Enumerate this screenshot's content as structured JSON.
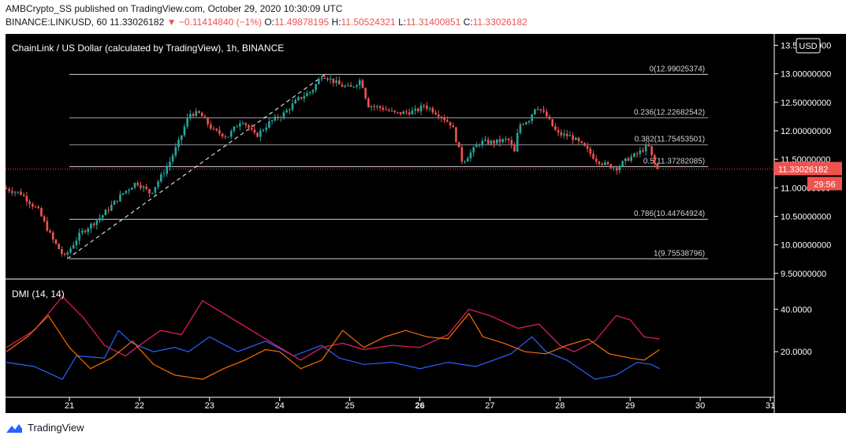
{
  "header": {
    "publisher_line": "AMBCrypto_SS published on TradingView.com, October 29, 2020 10:30:09 UTC",
    "symbol": "BINANCE:LINKUSD, 60",
    "last": "11.33026182",
    "change": "▼ −0.11414840 (−1%)",
    "o_label": "O:",
    "o_value": "11.49878195",
    "h_label": "H:",
    "h_value": "11.50524321",
    "l_label": "L:",
    "l_value": "11.31400851",
    "c_label": "C:",
    "c_value": "11.33026182"
  },
  "chart": {
    "title": "ChainLink / US Dollar (calculated by TradingView), 1h, BINANCE",
    "currency_button": "USD",
    "last_price_label": "11.33026182",
    "countdown_label": "29:56",
    "indicator_label": "DMI (14, 14)"
  },
  "footer": {
    "brand": "TradingView"
  },
  "colors": {
    "background": "#000000",
    "candle_up": "#26a69a",
    "candle_down": "#ef5350",
    "price_line": "#ef5350",
    "di_plus": "#2962ff",
    "di_minus": "#e91e63",
    "adx": "#ff6d00"
  },
  "chart_data": [
    {
      "type": "candlestick",
      "title": "ChainLink / US Dollar (calculated by TradingView), 1h, BINANCE",
      "x_ticks": [
        "21",
        "22",
        "23",
        "24",
        "25",
        "26",
        "27",
        "28",
        "29",
        "30",
        "31"
      ],
      "y_ticks": [
        "13.50000000",
        "13.00000000",
        "12.50000000",
        "12.00000000",
        "11.50000000",
        "11.00000000",
        "10.50000000",
        "10.00000000",
        "9.50000000"
      ],
      "ylim": [
        9.4,
        13.7
      ],
      "price_path": [
        [
          20.1,
          11.0
        ],
        [
          20.35,
          10.9
        ],
        [
          20.6,
          10.6
        ],
        [
          20.8,
          10.1
        ],
        [
          20.97,
          9.78
        ],
        [
          21.2,
          10.2
        ],
        [
          21.5,
          10.5
        ],
        [
          21.8,
          10.9
        ],
        [
          22.0,
          11.1
        ],
        [
          22.2,
          10.9
        ],
        [
          22.45,
          11.4
        ],
        [
          22.62,
          11.85
        ],
        [
          22.75,
          12.3
        ],
        [
          22.9,
          12.3
        ],
        [
          23.1,
          12.0
        ],
        [
          23.3,
          11.9
        ],
        [
          23.5,
          12.2
        ],
        [
          23.7,
          11.9
        ],
        [
          23.9,
          12.15
        ],
        [
          24.1,
          12.3
        ],
        [
          24.3,
          12.55
        ],
        [
          24.5,
          12.7
        ],
        [
          24.65,
          12.99
        ],
        [
          24.9,
          12.8
        ],
        [
          25.05,
          12.75
        ],
        [
          25.2,
          12.9
        ],
        [
          25.3,
          12.45
        ],
        [
          25.5,
          12.4
        ],
        [
          25.7,
          12.3
        ],
        [
          26.0,
          12.35
        ],
        [
          26.1,
          12.45
        ],
        [
          26.3,
          12.3
        ],
        [
          26.5,
          12.1
        ],
        [
          26.65,
          11.45
        ],
        [
          26.9,
          11.8
        ],
        [
          27.1,
          11.8
        ],
        [
          27.3,
          11.85
        ],
        [
          27.4,
          11.6
        ],
        [
          27.45,
          12.1
        ],
        [
          27.6,
          12.2
        ],
        [
          27.7,
          12.45
        ],
        [
          27.85,
          12.25
        ],
        [
          28.0,
          11.95
        ],
        [
          28.2,
          11.9
        ],
        [
          28.4,
          11.7
        ],
        [
          28.55,
          11.5
        ],
        [
          28.7,
          11.4
        ],
        [
          28.85,
          11.35
        ],
        [
          29.0,
          11.5
        ],
        [
          29.15,
          11.6
        ],
        [
          29.3,
          11.75
        ],
        [
          29.35,
          11.55
        ],
        [
          29.42,
          11.33
        ]
      ],
      "last": 11.33026182
    },
    {
      "type": "line",
      "title": "DMI (14, 14)",
      "y_ticks": [
        "40.0000",
        "20.0000"
      ],
      "ylim": [
        0,
        52
      ],
      "series": [
        {
          "key": "di_plus",
          "values": [
            [
              20.1,
              15
            ],
            [
              20.5,
              13
            ],
            [
              20.9,
              7
            ],
            [
              21.1,
              18
            ],
            [
              21.5,
              17
            ],
            [
              21.7,
              30
            ],
            [
              21.9,
              24
            ],
            [
              22.2,
              20
            ],
            [
              22.5,
              22
            ],
            [
              22.7,
              20
            ],
            [
              23.0,
              27
            ],
            [
              23.4,
              20
            ],
            [
              23.8,
              25
            ],
            [
              24.2,
              18
            ],
            [
              24.6,
              23
            ],
            [
              24.85,
              17
            ],
            [
              25.2,
              14
            ],
            [
              25.6,
              15
            ],
            [
              26.0,
              12
            ],
            [
              26.4,
              15
            ],
            [
              26.8,
              13
            ],
            [
              27.3,
              19
            ],
            [
              27.6,
              27
            ],
            [
              27.8,
              20
            ],
            [
              28.1,
              16
            ],
            [
              28.5,
              7
            ],
            [
              28.8,
              9
            ],
            [
              29.1,
              15
            ],
            [
              29.3,
              14
            ],
            [
              29.42,
              12
            ]
          ]
        },
        {
          "key": "di_minus",
          "values": [
            [
              20.1,
              22
            ],
            [
              20.5,
              30
            ],
            [
              20.9,
              46
            ],
            [
              21.2,
              36
            ],
            [
              21.5,
              23
            ],
            [
              21.8,
              18
            ],
            [
              22.0,
              23
            ],
            [
              22.3,
              30
            ],
            [
              22.6,
              28
            ],
            [
              22.9,
              44
            ],
            [
              23.2,
              38
            ],
            [
              23.5,
              32
            ],
            [
              23.8,
              26
            ],
            [
              24.0,
              22
            ],
            [
              24.3,
              16
            ],
            [
              24.6,
              22
            ],
            [
              24.9,
              24
            ],
            [
              25.2,
              21
            ],
            [
              25.6,
              23
            ],
            [
              26.0,
              22
            ],
            [
              26.4,
              28
            ],
            [
              26.7,
              40
            ],
            [
              27.0,
              37
            ],
            [
              27.4,
              31
            ],
            [
              27.7,
              33
            ],
            [
              28.0,
              23
            ],
            [
              28.2,
              20
            ],
            [
              28.5,
              25
            ],
            [
              28.8,
              37
            ],
            [
              29.0,
              35
            ],
            [
              29.2,
              27
            ],
            [
              29.42,
              26
            ]
          ]
        },
        {
          "key": "adx",
          "values": [
            [
              20.1,
              20
            ],
            [
              20.4,
              27
            ],
            [
              20.7,
              37
            ],
            [
              21.0,
              22
            ],
            [
              21.3,
              12
            ],
            [
              21.6,
              17
            ],
            [
              21.9,
              25
            ],
            [
              22.2,
              14
            ],
            [
              22.5,
              9
            ],
            [
              22.9,
              7
            ],
            [
              23.2,
              12
            ],
            [
              23.5,
              16
            ],
            [
              23.8,
              21
            ],
            [
              24.0,
              20
            ],
            [
              24.3,
              12
            ],
            [
              24.6,
              16
            ],
            [
              24.9,
              30
            ],
            [
              25.2,
              22
            ],
            [
              25.5,
              27
            ],
            [
              25.8,
              30
            ],
            [
              26.1,
              27
            ],
            [
              26.4,
              26
            ],
            [
              26.7,
              38
            ],
            [
              26.9,
              27
            ],
            [
              27.2,
              24
            ],
            [
              27.5,
              20
            ],
            [
              27.8,
              19
            ],
            [
              28.1,
              23
            ],
            [
              28.4,
              26
            ],
            [
              28.7,
              19
            ],
            [
              29.0,
              17
            ],
            [
              29.2,
              16
            ],
            [
              29.42,
              21
            ]
          ]
        }
      ]
    }
  ],
  "fib_levels": [
    {
      "label": "0(12.99025374)",
      "value": 12.99025374
    },
    {
      "label": "0.236(12.22682542)",
      "value": 12.22682542
    },
    {
      "label": "0.382(11.75453501)",
      "value": 11.75453501
    },
    {
      "label": "0.5(11.37282085)",
      "value": 11.37282085
    },
    {
      "label": "0.786(10.44764924)",
      "value": 10.44764924
    },
    {
      "label": "1(9.75538796)",
      "value": 9.75538796
    }
  ],
  "fib_range": {
    "x_start": 21.0,
    "x_end": 30.0
  }
}
